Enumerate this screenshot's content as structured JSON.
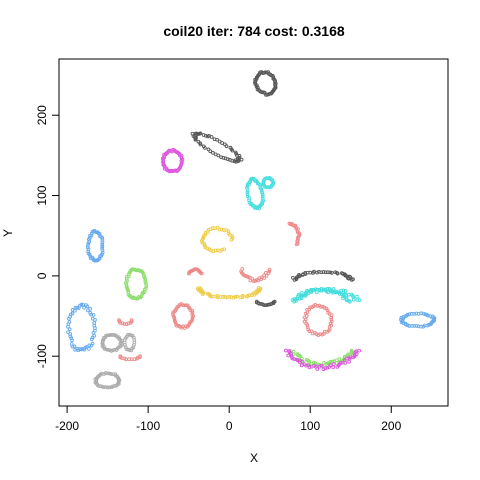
{
  "chart_data": {
    "type": "scatter",
    "title": "coil20 iter: 784 cost: 0.3168",
    "xlabel": "X",
    "ylabel": "Y",
    "xlim": [
      -210,
      270
    ],
    "ylim": [
      -162,
      270
    ],
    "xticks": [
      -200,
      -100,
      0,
      100,
      200
    ],
    "yticks": [
      -100,
      0,
      100,
      200
    ],
    "legend": "none",
    "clusters": [
      {
        "name": "black-top",
        "color": "#555555",
        "shape": "ring",
        "cx": 45,
        "cy": 240,
        "rx": 12,
        "ry": 14,
        "rot": 30,
        "n": 50
      },
      {
        "name": "black-curve",
        "color": "#555555",
        "shape": "ring",
        "cx": -15,
        "cy": 160,
        "rx": 32,
        "ry": 8,
        "rot": -30,
        "n": 55
      },
      {
        "name": "magenta-blob",
        "color": "#dd55dd",
        "shape": "ring",
        "cx": -70,
        "cy": 143,
        "rx": 12,
        "ry": 13,
        "rot": 0,
        "n": 50
      },
      {
        "name": "cyan-loop",
        "color": "#44dddd",
        "shape": "ring",
        "cx": 32,
        "cy": 102,
        "rx": 9,
        "ry": 18,
        "rot": 10,
        "n": 45
      },
      {
        "name": "cyan-small",
        "color": "#44dddd",
        "shape": "ring",
        "cx": 48,
        "cy": 116,
        "rx": 6,
        "ry": 6,
        "rot": 0,
        "n": 20
      },
      {
        "name": "blue-top",
        "color": "#66aaee",
        "shape": "ring",
        "cx": -165,
        "cy": 37,
        "rx": 9,
        "ry": 18,
        "rot": 0,
        "n": 45
      },
      {
        "name": "yellow-top",
        "color": "#eecc44",
        "shape": "arc",
        "cx": -15,
        "cy": 45,
        "rx": 18,
        "ry": 14,
        "a0": 0,
        "a1": 300,
        "n": 35
      },
      {
        "name": "yellow-bottom",
        "color": "#eecc44",
        "shape": "arc",
        "cx": 0,
        "cy": -15,
        "rx": 38,
        "ry": 12,
        "a0": 180,
        "a1": 360,
        "n": 45
      },
      {
        "name": "green-left",
        "color": "#88dd66",
        "shape": "ring",
        "cx": -115,
        "cy": -10,
        "rx": 12,
        "ry": 18,
        "rot": 0,
        "n": 45
      },
      {
        "name": "pink-small-arc",
        "color": "#ee8888",
        "shape": "arc",
        "cx": -42,
        "cy": 0,
        "rx": 8,
        "ry": 8,
        "a0": 20,
        "a1": 160,
        "n": 15
      },
      {
        "name": "pink-left-blob",
        "color": "#ee8888",
        "shape": "ring",
        "cx": -57,
        "cy": -50,
        "rx": 12,
        "ry": 14,
        "rot": 0,
        "n": 40
      },
      {
        "name": "pink-mid",
        "color": "#ee8888",
        "shape": "arc",
        "cx": 32,
        "cy": 15,
        "rx": 18,
        "ry": 20,
        "a0": 200,
        "a1": 340,
        "n": 25
      },
      {
        "name": "pink-arc-right",
        "color": "#ee8888",
        "shape": "arc",
        "cx": 72,
        "cy": 50,
        "rx": 14,
        "ry": 16,
        "a0": -40,
        "a1": 80,
        "n": 20
      },
      {
        "name": "pink-cluster-right",
        "color": "#ee8888",
        "shape": "ring",
        "cx": 110,
        "cy": -55,
        "rx": 16,
        "ry": 18,
        "rot": 20,
        "n": 45
      },
      {
        "name": "black-mid-right",
        "color": "#555555",
        "shape": "arc",
        "cx": 115,
        "cy": -5,
        "rx": 35,
        "ry": 10,
        "a0": 0,
        "a1": 180,
        "n": 40
      },
      {
        "name": "black-dash",
        "color": "#555555",
        "shape": "arc",
        "cx": 45,
        "cy": -30,
        "rx": 12,
        "ry": 6,
        "a0": 200,
        "a1": 340,
        "n": 15
      },
      {
        "name": "cyan-arcs",
        "color": "#44dddd",
        "shape": "arc",
        "cx": 115,
        "cy": -40,
        "rx": 35,
        "ry": 22,
        "a0": 20,
        "a1": 160,
        "n": 40
      },
      {
        "name": "cyan-arcs-2",
        "color": "#44dddd",
        "shape": "arc",
        "cx": 120,
        "cy": -45,
        "rx": 45,
        "ry": 28,
        "a0": 30,
        "a1": 150,
        "n": 40
      },
      {
        "name": "green-arcs",
        "color": "#88dd66",
        "shape": "arc",
        "cx": 115,
        "cy": -85,
        "rx": 40,
        "ry": 25,
        "a0": 200,
        "a1": 340,
        "n": 45
      },
      {
        "name": "magenta-arcs",
        "color": "#dd55dd",
        "shape": "arc",
        "cx": 115,
        "cy": -82,
        "rx": 48,
        "ry": 32,
        "a0": 200,
        "a1": 340,
        "n": 50
      },
      {
        "name": "blue-right",
        "color": "#66aaee",
        "shape": "ring",
        "cx": 233,
        "cy": -55,
        "rx": 20,
        "ry": 8,
        "rot": 0,
        "n": 45
      },
      {
        "name": "blue-bottom-left",
        "color": "#66aaee",
        "shape": "ring",
        "cx": -182,
        "cy": -65,
        "rx": 16,
        "ry": 28,
        "rot": 0,
        "n": 55
      },
      {
        "name": "gray-loop",
        "color": "#aaaaaa",
        "shape": "ring",
        "cx": -145,
        "cy": -83,
        "rx": 12,
        "ry": 10,
        "rot": 0,
        "n": 35
      },
      {
        "name": "gray-bottom",
        "color": "#aaaaaa",
        "shape": "ring",
        "cx": -150,
        "cy": -130,
        "rx": 15,
        "ry": 9,
        "rot": 0,
        "n": 40
      },
      {
        "name": "gray-small",
        "color": "#aaaaaa",
        "shape": "ring",
        "cx": -123,
        "cy": -83,
        "rx": 6,
        "ry": 10,
        "rot": 0,
        "n": 20
      },
      {
        "name": "pink-dash-left",
        "color": "#ee8888",
        "shape": "arc",
        "cx": -128,
        "cy": -55,
        "rx": 8,
        "ry": 5,
        "a0": 180,
        "a1": 360,
        "n": 10
      },
      {
        "name": "pink-dash-bottom",
        "color": "#ee8888",
        "shape": "arc",
        "cx": -122,
        "cy": -100,
        "rx": 12,
        "ry": 4,
        "a0": 180,
        "a1": 360,
        "n": 12
      }
    ]
  }
}
